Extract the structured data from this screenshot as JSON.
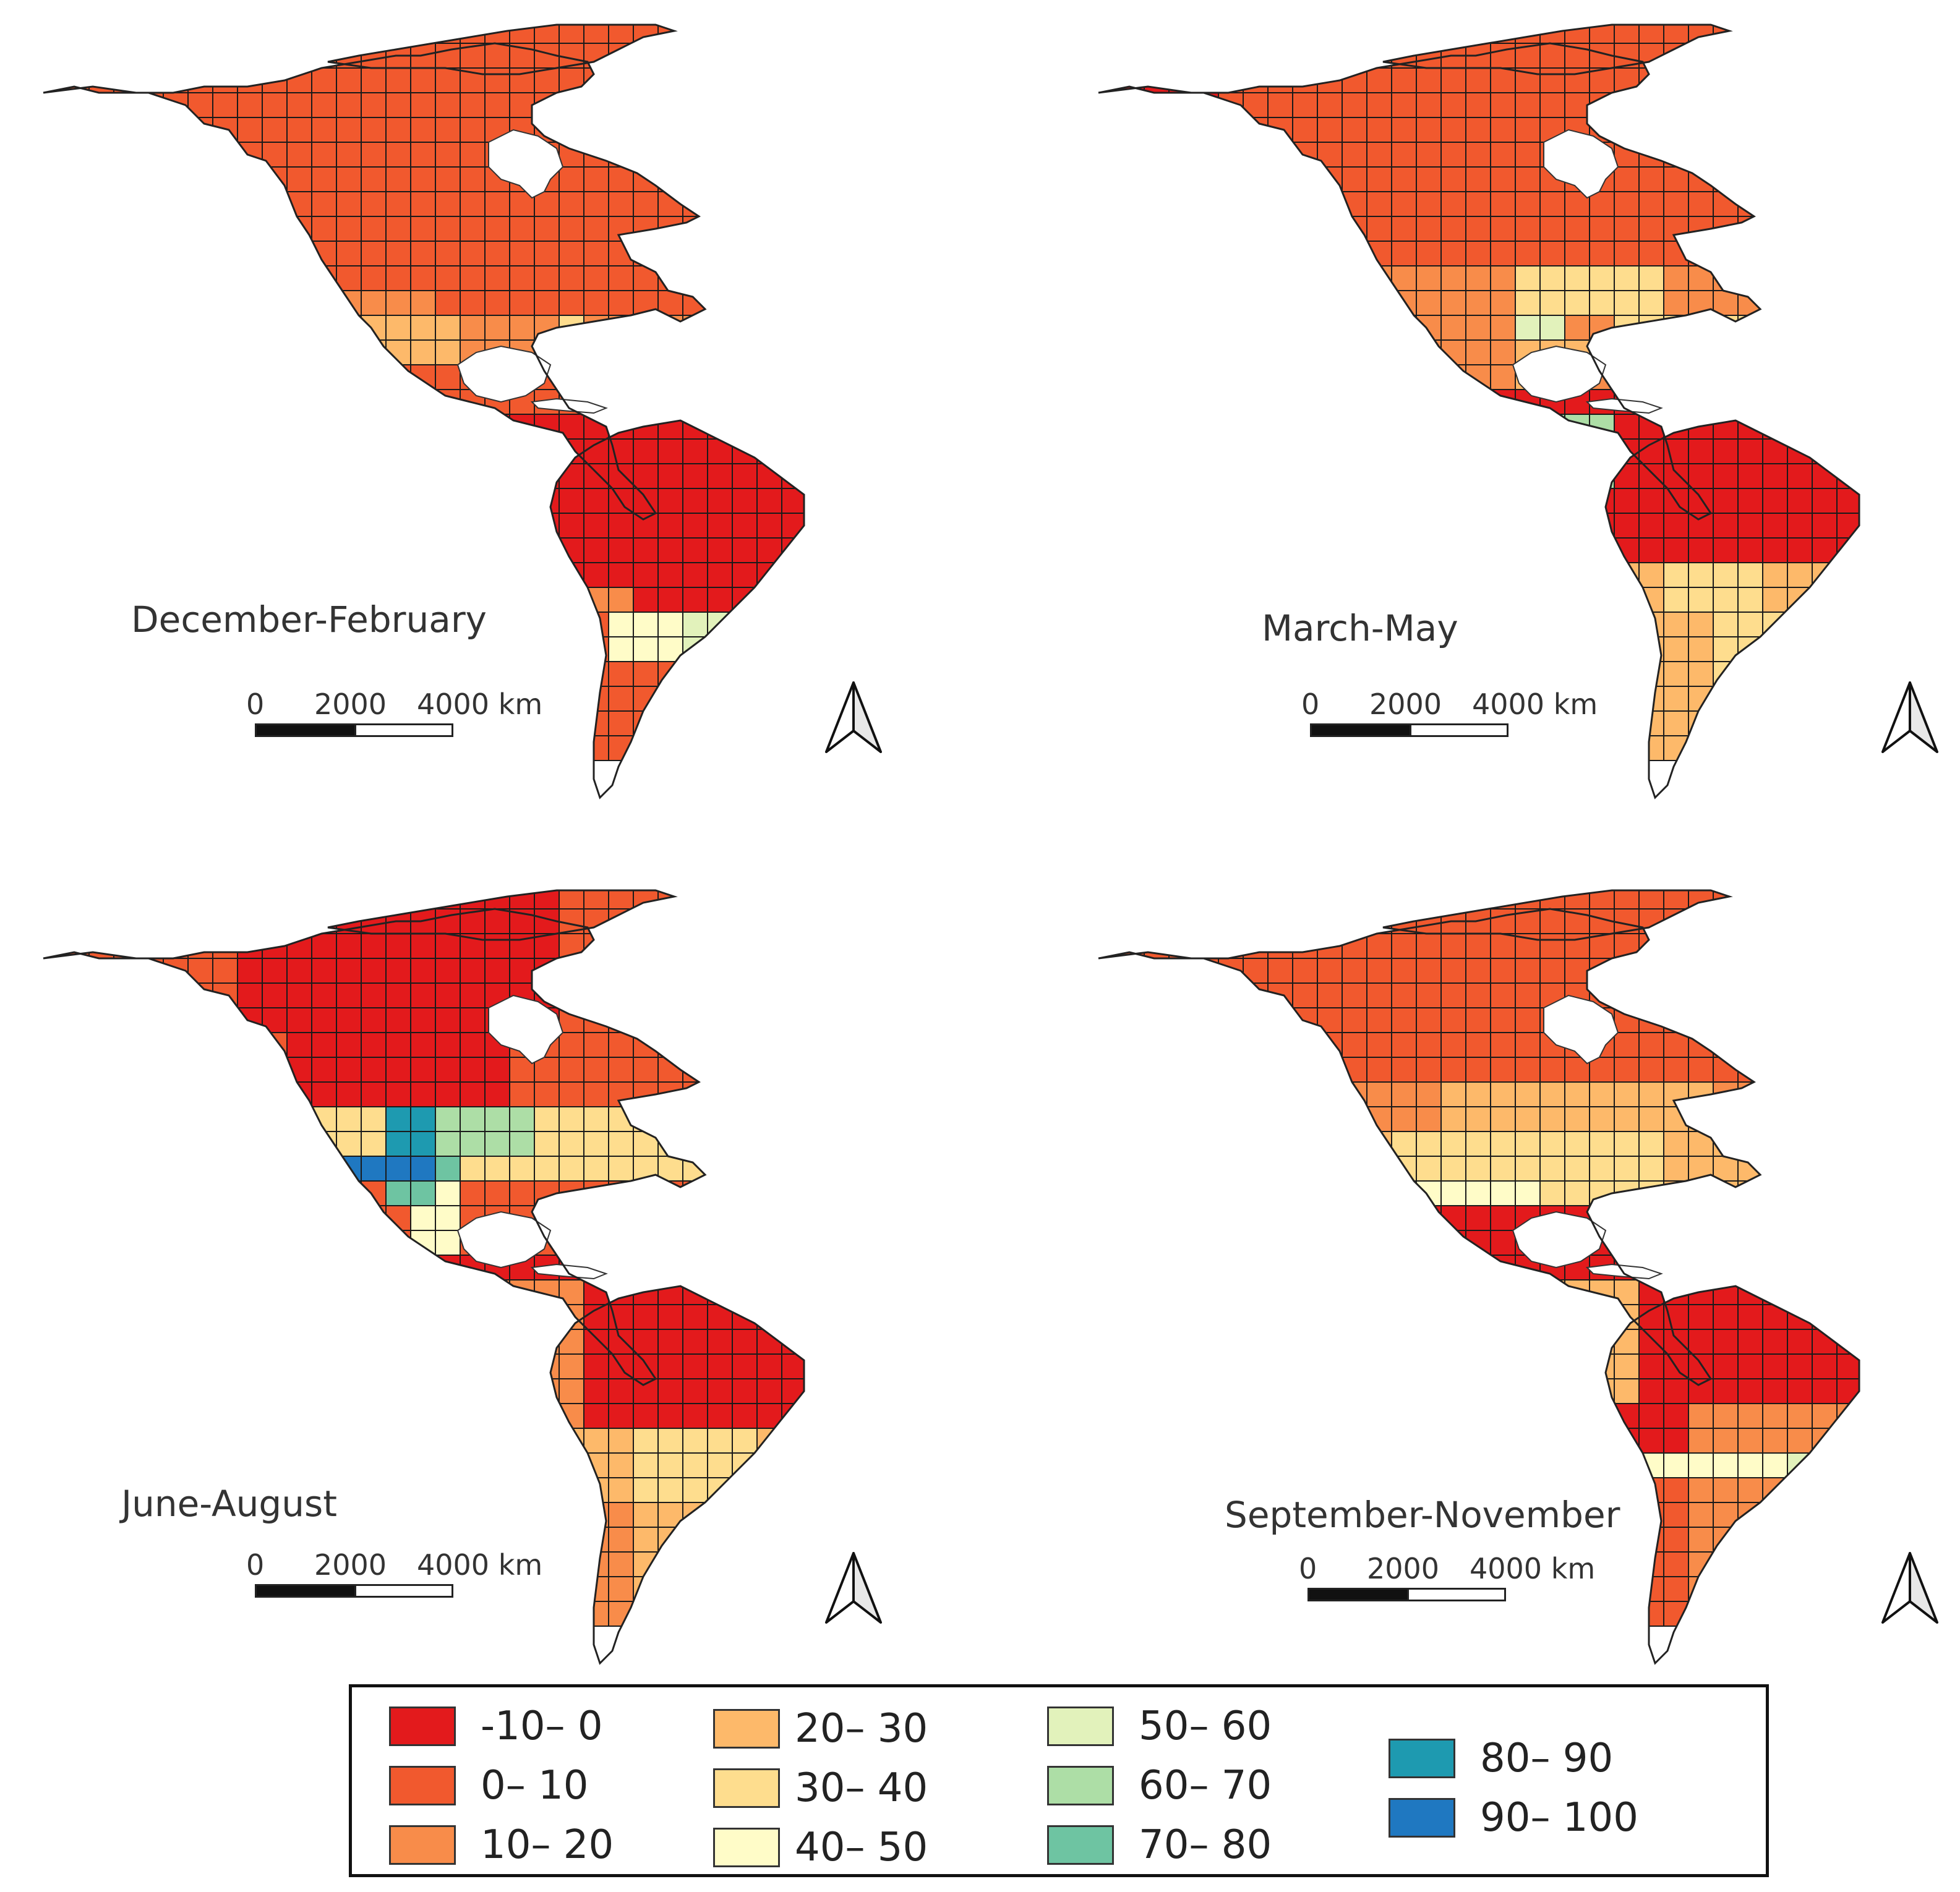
{
  "figure": {
    "panels": [
      {
        "id": "dec-feb",
        "title": "December-February"
      },
      {
        "id": "mar-may",
        "title": "March-May"
      },
      {
        "id": "jun-aug",
        "title": "June-August"
      },
      {
        "id": "sep-nov",
        "title": "September-November"
      }
    ],
    "scalebar": {
      "labels": [
        "0",
        "2000",
        "4000 km"
      ]
    },
    "legend": {
      "items": [
        {
          "label": "-10– 0",
          "color": "#e31a1c"
        },
        {
          "label": "0– 10",
          "color": "#f1592e"
        },
        {
          "label": "10– 20",
          "color": "#f88c4a"
        },
        {
          "label": "20– 30",
          "color": "#fdb96a"
        },
        {
          "label": "30– 40",
          "color": "#fedd8e"
        },
        {
          "label": "40– 50",
          "color": "#fffcc8"
        },
        {
          "label": "50– 60",
          "color": "#e2f2bb"
        },
        {
          "label": "60– 70",
          "color": "#addea6"
        },
        {
          "label": "70– 80",
          "color": "#6ec4a2"
        },
        {
          "label": "80– 90",
          "color": "#1e9ab0"
        },
        {
          "label": "90– 100",
          "color": "#1f78c1"
        }
      ]
    }
  }
}
